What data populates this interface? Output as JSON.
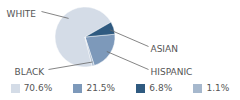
{
  "chart_data": {
    "type": "pie",
    "categories": [
      "WHITE",
      "HISPANIC",
      "ASIAN",
      "BLACK"
    ],
    "values": [
      70.6,
      21.5,
      6.8,
      1.1
    ],
    "value_labels": [
      "70.6%",
      "21.5%",
      "6.8%",
      "1.1%"
    ],
    "colors": [
      "#d4dce7",
      "#7d99ba",
      "#2f5a80",
      "#a6b8cd"
    ],
    "legend": "bottom"
  }
}
